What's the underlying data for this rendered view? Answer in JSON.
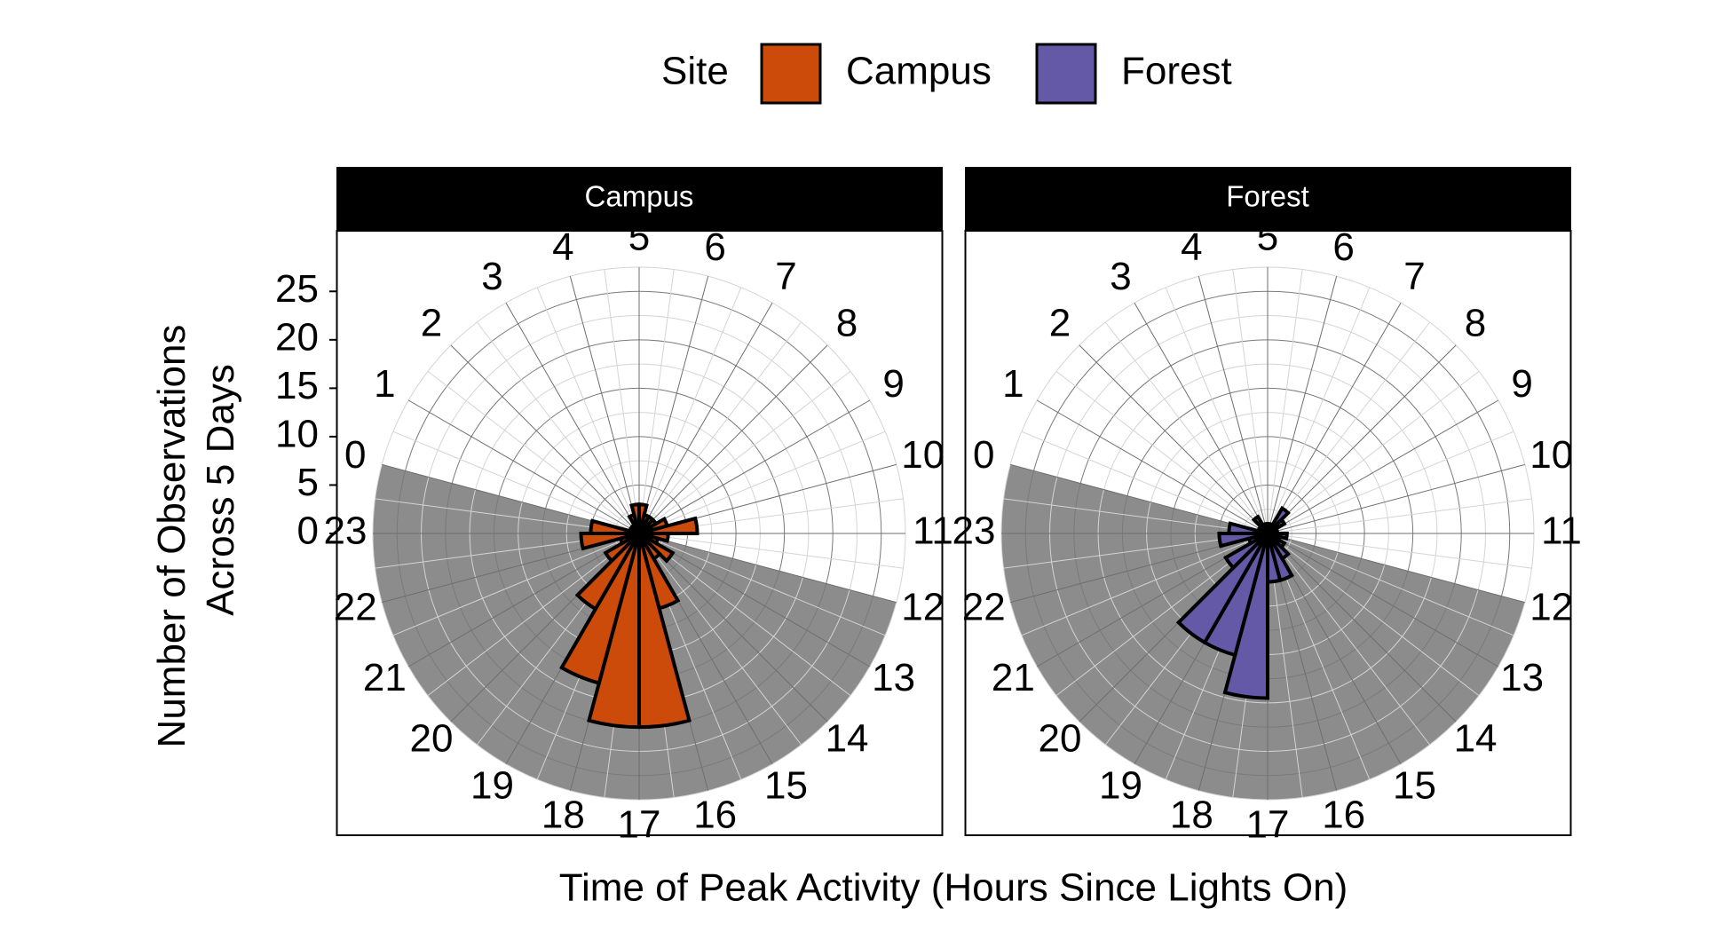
{
  "chart_data": {
    "type": "bar",
    "subtype": "polar-rose",
    "xlabel": "Time of Peak Activity (Hours Since Lights On)",
    "ylabel_line1": "Number of Observations",
    "ylabel_line2": "Across 5 Days",
    "legend": {
      "title": "Site",
      "position": "top",
      "items": [
        {
          "label": "Campus",
          "color": "#CC4A0A"
        },
        {
          "label": "Forest",
          "color": "#6459A7"
        }
      ]
    },
    "radial_axis": {
      "range": [
        0,
        27.5
      ],
      "ticks": [
        "0",
        "5",
        "10",
        "15",
        "20",
        "25"
      ],
      "tick_values": [
        0,
        5,
        10,
        15,
        20,
        25
      ]
    },
    "angular_axis": {
      "range": [
        0,
        24
      ],
      "tick_labels": [
        "0",
        "1",
        "2",
        "3",
        "4",
        "5",
        "6",
        "7",
        "8",
        "9",
        "10",
        "11",
        "12",
        "13",
        "14",
        "15",
        "16",
        "17",
        "18",
        "19",
        "20",
        "21",
        "22",
        "23"
      ]
    },
    "dark_period": {
      "start_hour": 12,
      "end_hour": 24,
      "color": "#8C8C8C"
    },
    "grid": true,
    "panels": [
      {
        "strip_label": "Campus",
        "color": "#CC4A0A",
        "hours": [
          0,
          1,
          2,
          3,
          4,
          5,
          6,
          7,
          8,
          9,
          10,
          11,
          12,
          13,
          14,
          15,
          16,
          17,
          18,
          19,
          20,
          21,
          22,
          23
        ],
        "values": [
          0,
          1,
          1,
          2,
          3,
          3,
          2,
          2,
          2,
          3,
          6,
          3,
          2,
          4,
          3,
          8,
          20,
          20,
          16,
          9,
          4,
          2,
          6,
          5
        ]
      },
      {
        "strip_label": "Forest",
        "color": "#6459A7",
        "hours": [
          0,
          1,
          2,
          3,
          4,
          5,
          6,
          7,
          8,
          9,
          10,
          11,
          12,
          13,
          14,
          15,
          16,
          17,
          18,
          19,
          20,
          21,
          22,
          23
        ],
        "values": [
          0,
          1,
          2,
          1,
          1,
          1,
          1,
          3,
          2,
          1,
          1,
          2,
          1,
          2,
          3,
          5,
          5,
          17,
          13,
          13,
          5,
          2,
          5,
          4
        ]
      }
    ]
  }
}
